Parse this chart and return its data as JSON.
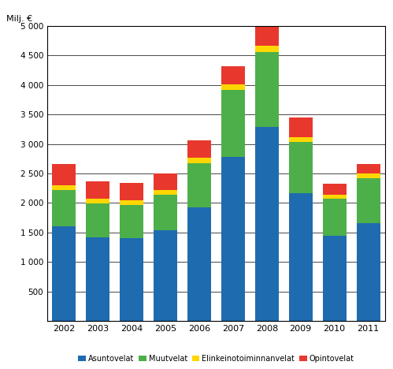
{
  "years": [
    "2002",
    "2003",
    "2004",
    "2005",
    "2006",
    "2007",
    "2008",
    "2009",
    "2010",
    "2011"
  ],
  "asuntovelat": [
    1600,
    1420,
    1400,
    1540,
    1920,
    2780,
    3290,
    2160,
    1450,
    1660
  ],
  "muutvelat": [
    620,
    570,
    570,
    600,
    750,
    1130,
    1270,
    870,
    620,
    760
  ],
  "elinkeinot": [
    80,
    80,
    80,
    80,
    90,
    100,
    100,
    90,
    70,
    75
  ],
  "opintovelat": [
    360,
    290,
    290,
    280,
    300,
    310,
    330,
    330,
    190,
    160
  ],
  "colors": {
    "asuntovelat": "#1F6BB0",
    "muutvelat": "#4DAF4A",
    "elinkeinot": "#FFD700",
    "opintovelat": "#E8382E"
  },
  "ylim": [
    0,
    5000
  ],
  "yticks": [
    0,
    500,
    1000,
    1500,
    2000,
    2500,
    3000,
    3500,
    4000,
    4500,
    5000
  ],
  "ylabel": "Milj. €",
  "legend_labels": [
    "Asuntovelat",
    "Muutvelat",
    "Elinkeinotoiminnanvelat",
    "Opintovelat"
  ]
}
